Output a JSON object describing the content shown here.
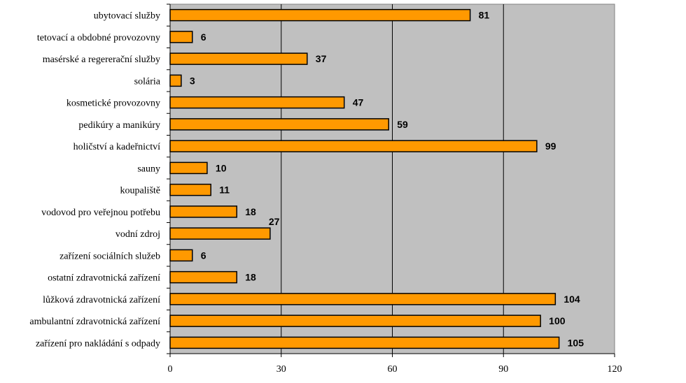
{
  "chart_data": {
    "type": "bar",
    "orientation": "horizontal",
    "categories": [
      "ubytovací služby ",
      "tetovací a obdobné provozovny",
      "masérské a regererační služby",
      "solária",
      "kosmetické provozovny",
      "pedikúry a manikúry",
      "holičství a kadeřnictví",
      "sauny",
      "koupaliště",
      "vodovod pro veřejnou potřebu",
      "vodní zdroj",
      "zařízení sociálních služeb",
      "ostatní zdravotnická zařízení ",
      "lůžková zdravotnická zařízení",
      "ambulantní zdravotnická zařízení",
      "zařízení pro nakládání s odpady"
    ],
    "values": [
      81,
      6,
      37,
      3,
      47,
      59,
      99,
      10,
      11,
      18,
      27,
      6,
      18,
      104,
      100,
      105
    ],
    "xlim": [
      0,
      120
    ],
    "xticks": [
      "0",
      "30",
      "60",
      "90",
      "120"
    ],
    "grid": "vertical major gridlines",
    "legend": "none",
    "colors": {
      "bar_fill": "#FF9900",
      "bar_stroke": "#000000",
      "plot_background": "#C0C0C0"
    }
  }
}
